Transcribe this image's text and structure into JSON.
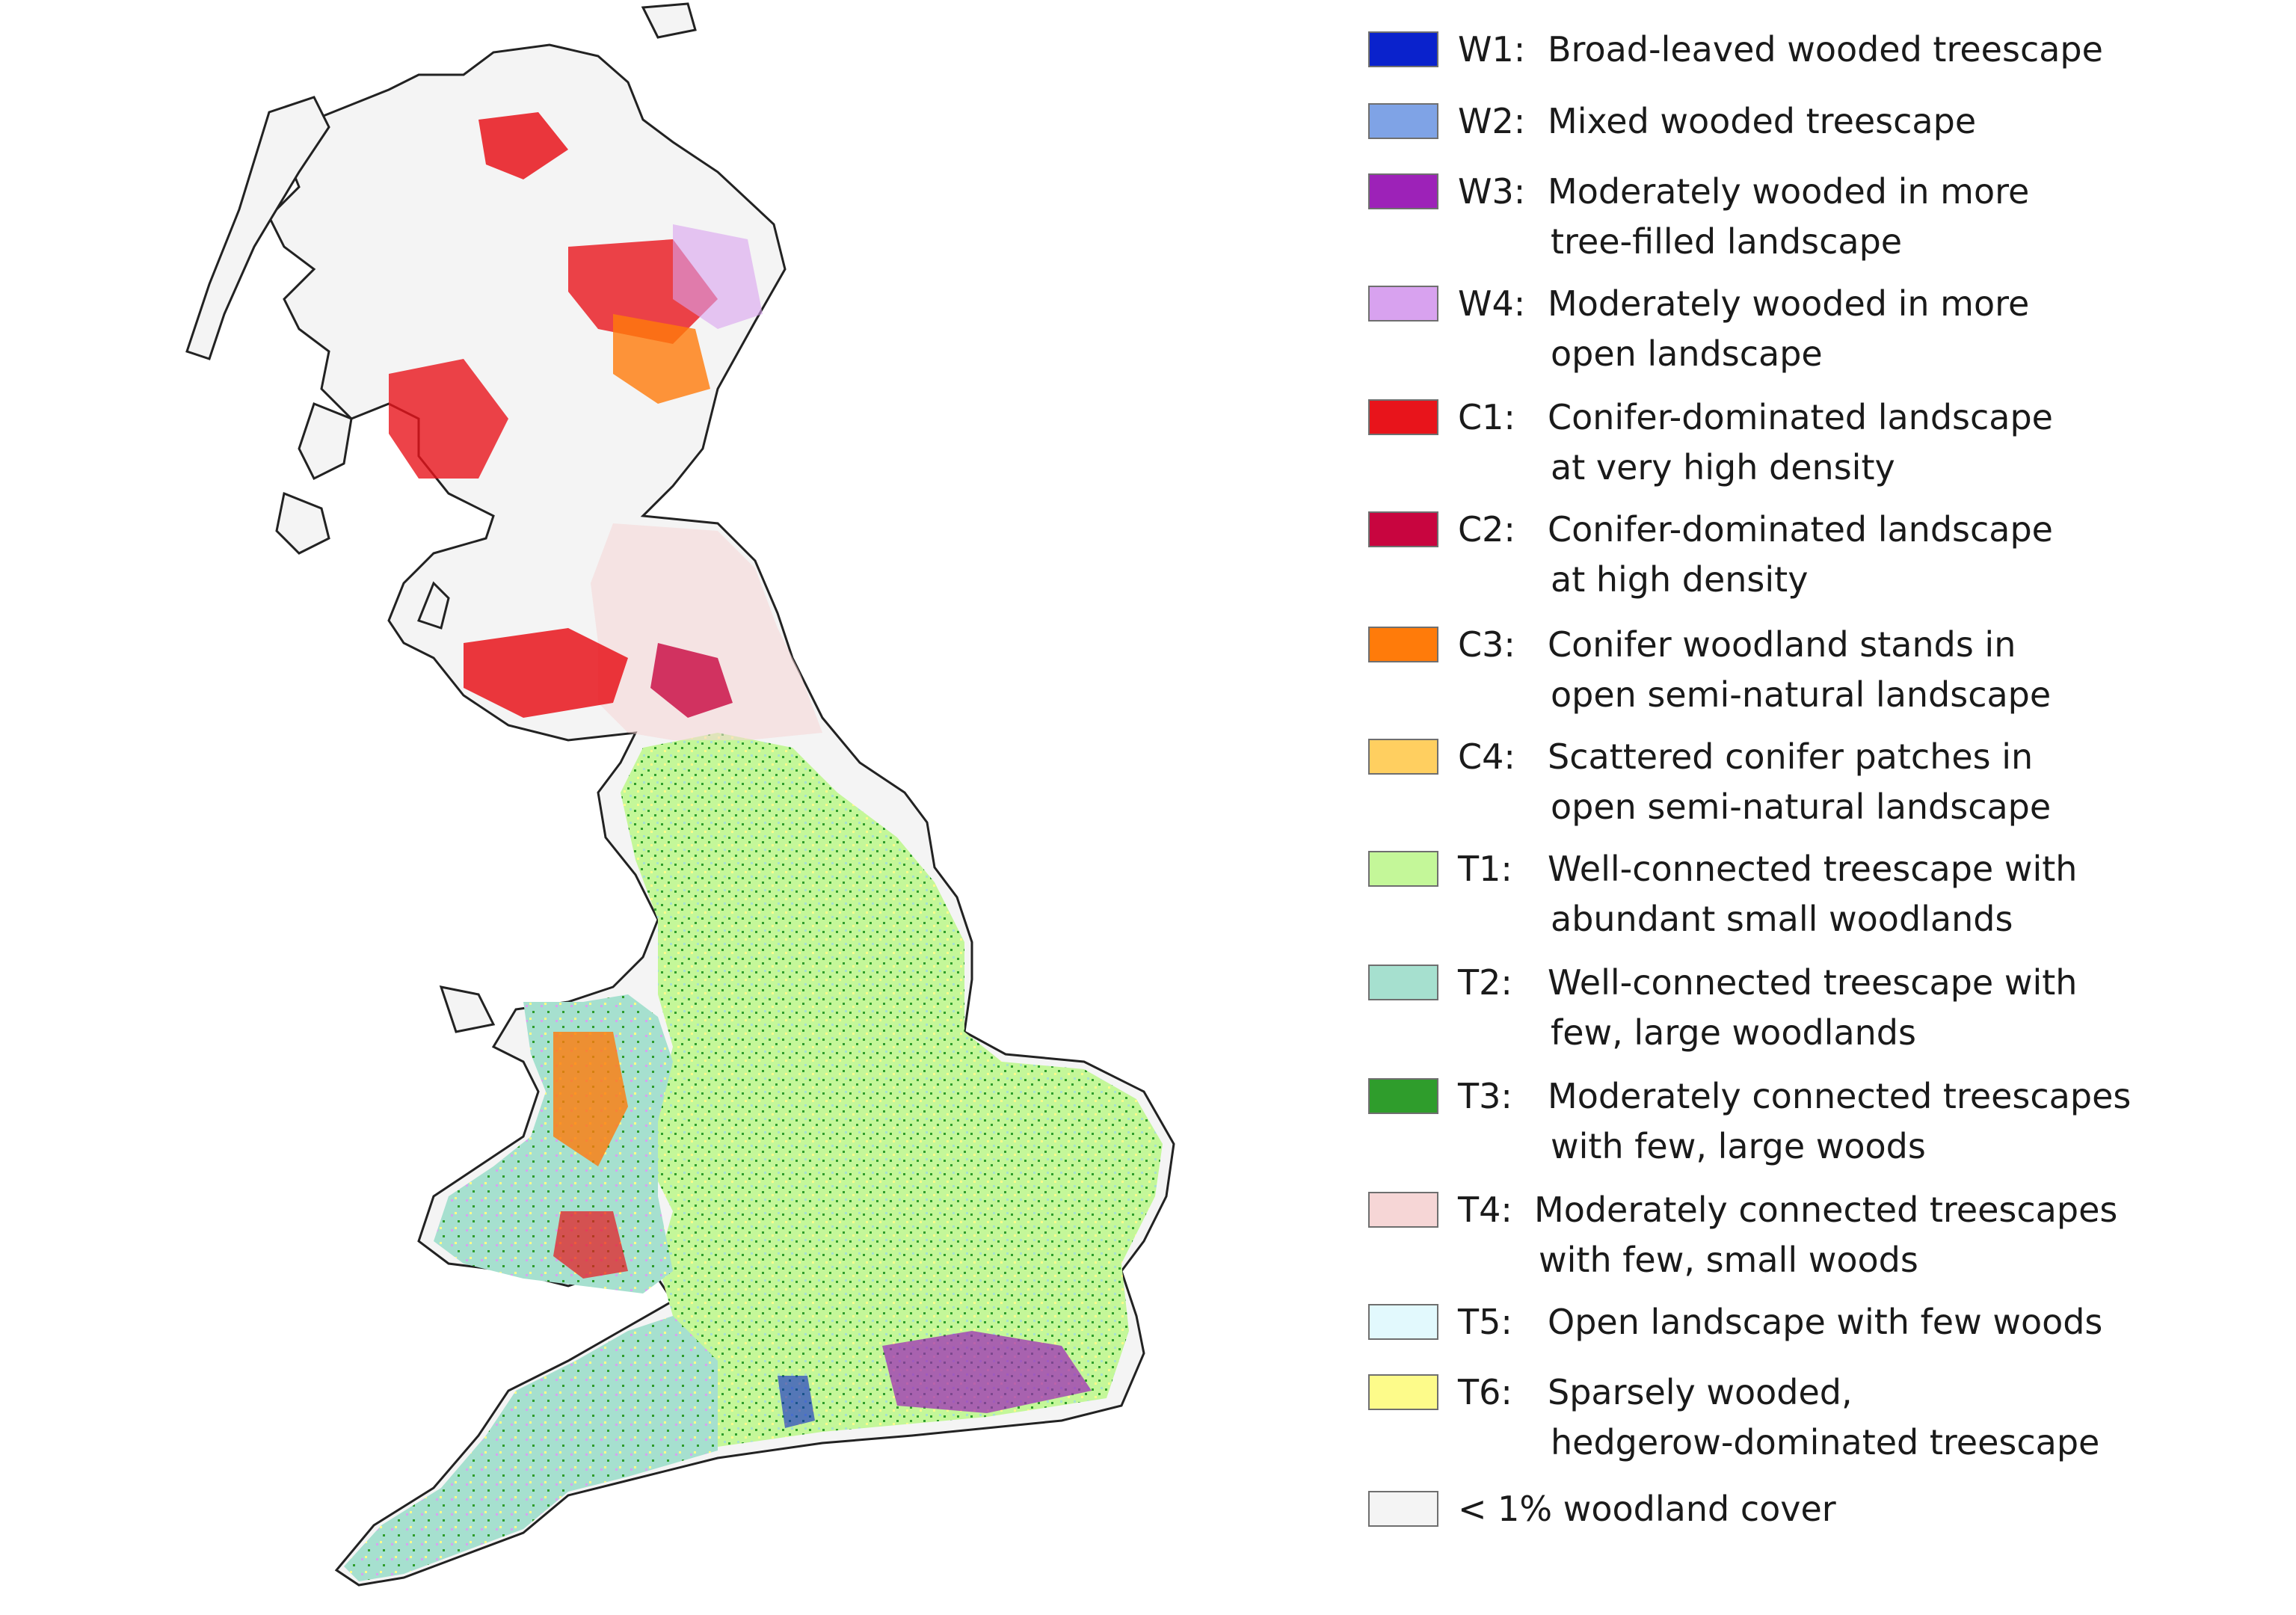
{
  "legend": {
    "items": [
      {
        "code": "W1:",
        "line1": "Broad-leaved wooded treescape",
        "line2": "",
        "color": "#0a22cc"
      },
      {
        "code": "W2:",
        "line1": "Mixed wooded treescape",
        "line2": "",
        "color": "#7fa3e6"
      },
      {
        "code": "W3:",
        "line1": "Moderately wooded in more",
        "line2": "tree-filled landscape",
        "color": "#9d22b8"
      },
      {
        "code": "W4:",
        "line1": "Moderately wooded in more",
        "line2": "open landscape",
        "color": "#d8a2ef"
      },
      {
        "code": "C1:",
        "line1": "Conifer-dominated landscape",
        "line2": "at very high density",
        "color": "#e8141b"
      },
      {
        "code": "C2:",
        "line1": "Conifer-dominated landscape",
        "line2": "at high density",
        "color": "#c8053f"
      },
      {
        "code": "C3:",
        "line1": "Conifer woodland stands in",
        "line2": "open semi-natural landscape",
        "color": "#ff7b0a"
      },
      {
        "code": "C4:",
        "line1": "Scattered conifer patches in",
        "line2": "open semi-natural landscape",
        "color": "#ffcf60"
      },
      {
        "code": "T1:",
        "line1": "Well-connected treescape with",
        "line2": "abundant small woodlands",
        "color": "#c4f799"
      },
      {
        "code": "T2:",
        "line1": "Well-connected treescape with",
        "line2": "few, large woodlands",
        "color": "#a6e0cf"
      },
      {
        "code": "T3:",
        "line1": "Moderately connected treescapes",
        "line2": "with few, large woods",
        "color": "#2f9d2c"
      },
      {
        "code": "T4:",
        "line1": "Moderately connected treescapes",
        "line2": "with few, small woods",
        "color": "#f6d6d6"
      },
      {
        "code": "T5:",
        "line1": "Open landscape with few woods",
        "line2": "",
        "color": "#e2f9fd"
      },
      {
        "code": "T6:",
        "line1": "Sparsely wooded,",
        "line2": "hedgerow-dominated treescape",
        "color": "#fdfb8a"
      }
    ],
    "other": {
      "label": "< 1% woodland cover",
      "color": "#f4f4f4"
    }
  }
}
